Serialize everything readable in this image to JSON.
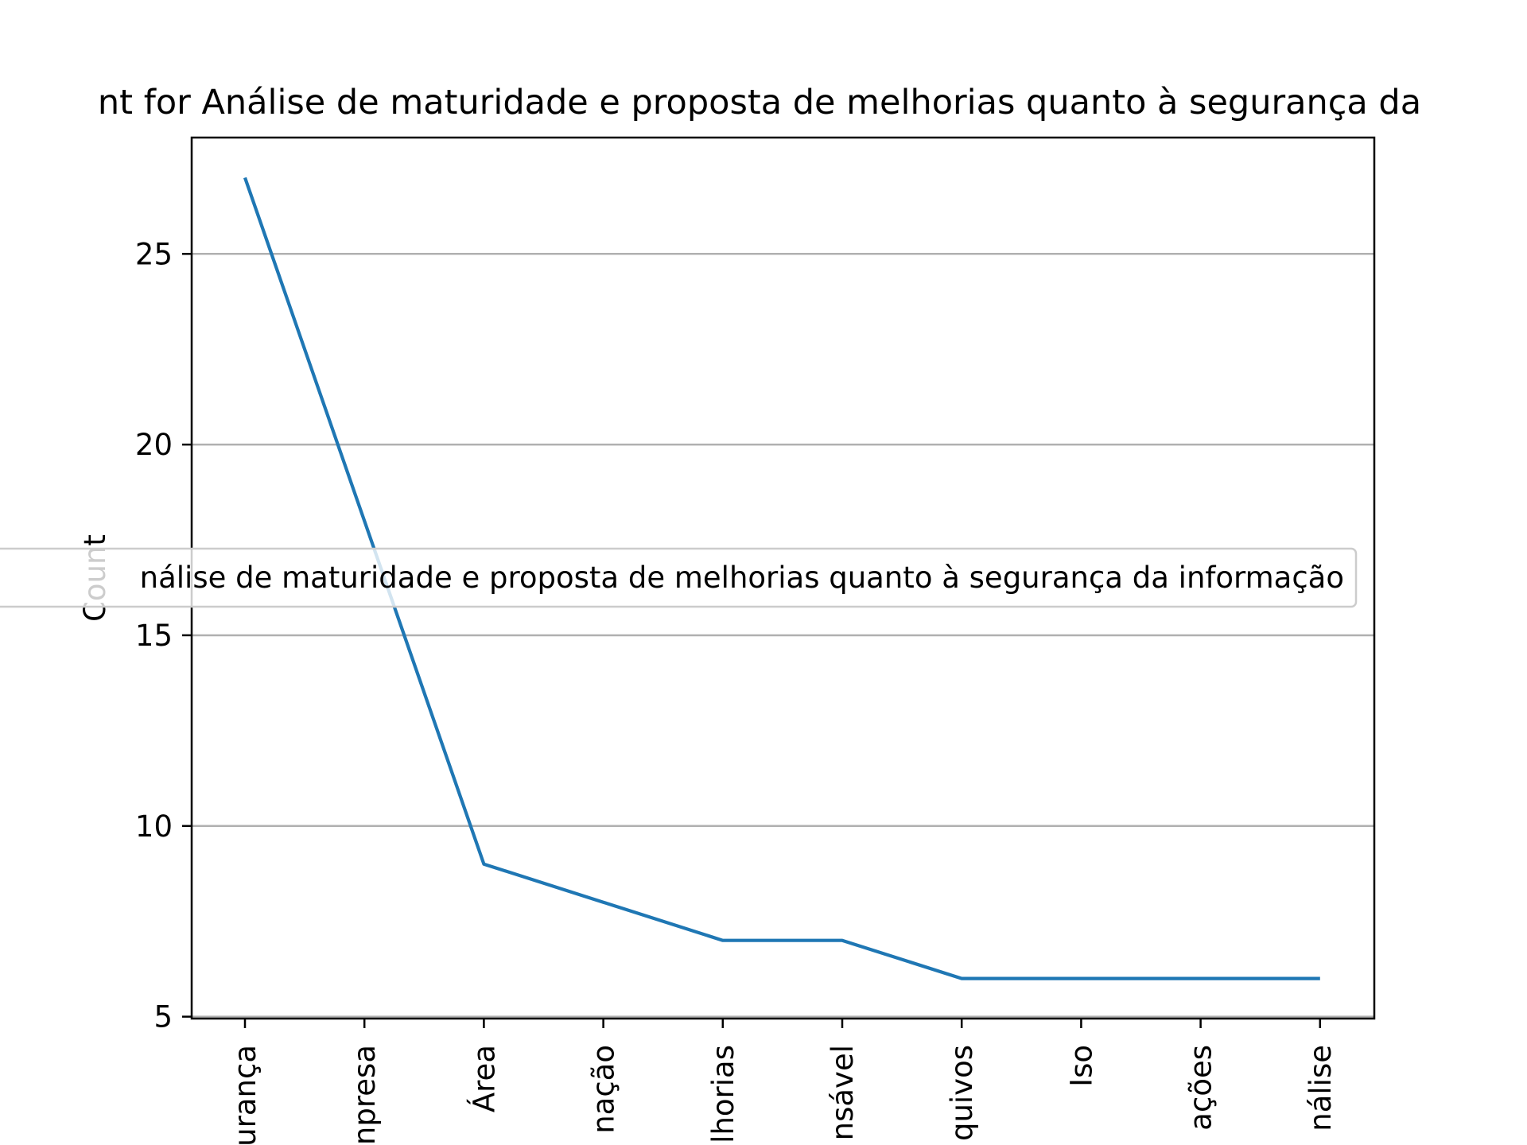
{
  "chart_data": {
    "type": "line",
    "title": "nt for Análise de maturidade e proposta de melhorias quanto à segurança da",
    "xlabel": "",
    "ylabel": "Count",
    "categories": [
      "urança",
      "npresa",
      "Área",
      "nação",
      "lhorias",
      "nsável",
      "quivos",
      "Iso",
      "ações",
      "nálise"
    ],
    "series": [
      {
        "name": "nálise de maturidade e proposta de melhorias quanto à segurança da informação",
        "values": [
          27,
          18,
          9,
          8,
          7,
          7,
          6,
          6,
          6,
          6
        ],
        "color": "#1f77b4"
      }
    ],
    "yticks": [
      5,
      10,
      15,
      20,
      25
    ],
    "ylim": [
      4.95,
      28.05
    ],
    "grid": "y",
    "legend_placement": "center"
  }
}
